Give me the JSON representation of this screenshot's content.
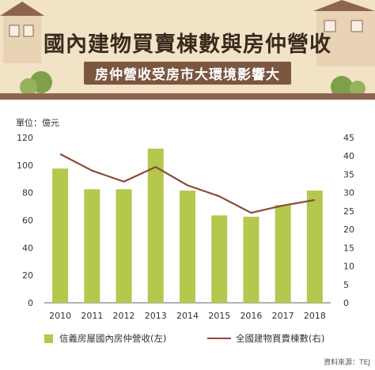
{
  "header": {
    "title": "國內建物買賣棟數與房仲營收",
    "subtitle": "房仲營收受房市大環境影響大"
  },
  "unit_label": "單位：億元",
  "source": "資料來源：TEJ",
  "colors": {
    "bar": "#b5c84d",
    "line": "#8a4b3a",
    "header_bg": "#f2e2c6",
    "subtitle_bg": "#7b5640"
  },
  "chart_data": {
    "type": "bar",
    "title": "國內建物買賣棟數與房仲營收",
    "categories": [
      "2010",
      "2011",
      "2012",
      "2013",
      "2014",
      "2015",
      "2016",
      "2017",
      "2018"
    ],
    "series": [
      {
        "name": "信義房屋國內房仲營收(左)",
        "type": "bar",
        "axis": "left",
        "values": [
          97.5,
          82.5,
          82.5,
          112,
          81.5,
          63.5,
          62.5,
          71,
          81.5
        ]
      },
      {
        "name": "全國建物買賣棟數(右)",
        "type": "line",
        "axis": "right",
        "values": [
          40.5,
          36,
          33,
          37,
          32,
          29,
          24.5,
          26.5,
          28
        ]
      }
    ],
    "ylim_left": [
      0,
      120
    ],
    "yticks_left": [
      0,
      20,
      40,
      60,
      80,
      100,
      120
    ],
    "ylim_right": [
      0,
      45
    ],
    "yticks_right": [
      0,
      5,
      10,
      15,
      20,
      25,
      30,
      35,
      40,
      45
    ],
    "grid": false,
    "legend": "bottom"
  }
}
